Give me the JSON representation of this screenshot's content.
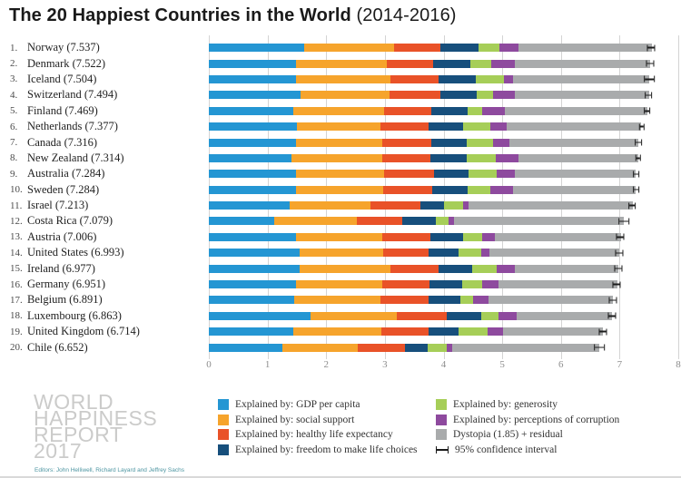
{
  "title": {
    "main": "The 20 Happiest Countries in the World",
    "period": "(2014-2016)"
  },
  "watermark": {
    "lines": [
      "WORLD",
      "HAPPINESS",
      "REPORT",
      "2017"
    ]
  },
  "source": "Editors: John Helliwell, Richard Layard and Jeffrey Sachs",
  "colors": {
    "gdp": "#2496d3",
    "social": "#f6a42c",
    "health": "#e95228",
    "freedom": "#174f7c",
    "generosity": "#a6ce58",
    "corruption": "#8e4a9e",
    "dystopia": "#a9abac",
    "gridline": "#d4d4d4",
    "errorbar": "#1b1b1b"
  },
  "chart_data": {
    "type": "bar",
    "orientation": "horizontal",
    "stacked": true,
    "xmax": 8,
    "ticks": [
      0,
      1,
      2,
      3,
      4,
      5,
      6,
      7,
      8
    ],
    "segments_order": [
      "gdp",
      "social",
      "health",
      "freedom",
      "generosity",
      "corruption",
      "dystopia"
    ],
    "countries": [
      {
        "rank": 1,
        "name": "Norway",
        "score": "7.537",
        "values": [
          1.62,
          1.53,
          0.8,
          0.64,
          0.36,
          0.32,
          2.28
        ],
        "ci": 0.07
      },
      {
        "rank": 2,
        "name": "Denmark",
        "score": "7.522",
        "values": [
          1.48,
          1.55,
          0.79,
          0.63,
          0.36,
          0.4,
          2.31
        ],
        "ci": 0.07
      },
      {
        "rank": 3,
        "name": "Iceland",
        "score": "7.504",
        "values": [
          1.48,
          1.61,
          0.83,
          0.63,
          0.48,
          0.15,
          2.32
        ],
        "ci": 0.09
      },
      {
        "rank": 4,
        "name": "Switzerland",
        "score": "7.494",
        "values": [
          1.56,
          1.52,
          0.86,
          0.62,
          0.29,
          0.37,
          2.28
        ],
        "ci": 0.06
      },
      {
        "rank": 5,
        "name": "Finland",
        "score": "7.469",
        "values": [
          1.44,
          1.54,
          0.81,
          0.62,
          0.25,
          0.38,
          2.43
        ],
        "ci": 0.06
      },
      {
        "rank": 6,
        "name": "Netherlands",
        "score": "7.377",
        "values": [
          1.5,
          1.43,
          0.81,
          0.59,
          0.47,
          0.28,
          2.29
        ],
        "ci": 0.05
      },
      {
        "rank": 7,
        "name": "Canada",
        "score": "7.316",
        "values": [
          1.48,
          1.48,
          0.83,
          0.61,
          0.44,
          0.29,
          2.19
        ],
        "ci": 0.06
      },
      {
        "rank": 8,
        "name": "New Zealand",
        "score": "7.314",
        "values": [
          1.41,
          1.55,
          0.82,
          0.61,
          0.5,
          0.38,
          2.05
        ],
        "ci": 0.05
      },
      {
        "rank": 9,
        "name": "Australia",
        "score": "7.284",
        "values": [
          1.48,
          1.51,
          0.84,
          0.6,
          0.48,
          0.3,
          2.07
        ],
        "ci": 0.06
      },
      {
        "rank": 10,
        "name": "Sweden",
        "score": "7.284",
        "values": [
          1.49,
          1.48,
          0.83,
          0.61,
          0.39,
          0.38,
          2.1
        ],
        "ci": 0.06
      },
      {
        "rank": 11,
        "name": "Israel",
        "score": "7.213",
        "values": [
          1.38,
          1.38,
          0.84,
          0.41,
          0.33,
          0.09,
          2.8
        ],
        "ci": 0.06
      },
      {
        "rank": 12,
        "name": "Costa Rica",
        "score": "7.079",
        "values": [
          1.11,
          1.42,
          0.76,
          0.58,
          0.21,
          0.1,
          2.9
        ],
        "ci": 0.09
      },
      {
        "rank": 13,
        "name": "Austria",
        "score": "7.006",
        "values": [
          1.49,
          1.46,
          0.82,
          0.57,
          0.32,
          0.22,
          2.14
        ],
        "ci": 0.07
      },
      {
        "rank": 14,
        "name": "United States",
        "score": "6.993",
        "values": [
          1.55,
          1.42,
          0.77,
          0.51,
          0.39,
          0.14,
          2.22
        ],
        "ci": 0.07
      },
      {
        "rank": 15,
        "name": "Ireland",
        "score": "6.977",
        "values": [
          1.54,
          1.56,
          0.81,
          0.57,
          0.43,
          0.3,
          1.77
        ],
        "ci": 0.07
      },
      {
        "rank": 16,
        "name": "Germany",
        "score": "6.951",
        "values": [
          1.49,
          1.47,
          0.8,
          0.56,
          0.34,
          0.28,
          2.02
        ],
        "ci": 0.07
      },
      {
        "rank": 17,
        "name": "Belgium",
        "score": "6.891",
        "values": [
          1.46,
          1.46,
          0.82,
          0.54,
          0.23,
          0.25,
          2.12
        ],
        "ci": 0.07
      },
      {
        "rank": 18,
        "name": "Luxembourg",
        "score": "6.863",
        "values": [
          1.74,
          1.46,
          0.85,
          0.6,
          0.28,
          0.32,
          1.62
        ],
        "ci": 0.07
      },
      {
        "rank": 19,
        "name": "United Kingdom",
        "score": "6.714",
        "values": [
          1.44,
          1.5,
          0.81,
          0.51,
          0.49,
          0.27,
          1.7
        ],
        "ci": 0.07
      },
      {
        "rank": 20,
        "name": "Chile",
        "score": "6.652",
        "values": [
          1.25,
          1.28,
          0.82,
          0.38,
          0.33,
          0.08,
          2.51
        ],
        "ci": 0.09
      }
    ],
    "legend": [
      {
        "key": "gdp",
        "label": "Explained by: GDP per capita"
      },
      {
        "key": "social",
        "label": "Explained by: social support"
      },
      {
        "key": "health",
        "label": "Explained by: healthy life expectancy"
      },
      {
        "key": "freedom",
        "label": "Explained by: freedom to make life choices"
      },
      {
        "key": "generosity",
        "label": "Explained by: generosity"
      },
      {
        "key": "corruption",
        "label": "Explained by: perceptions of corruption"
      },
      {
        "key": "dystopia",
        "label": "Dystopia (1.85) + residual"
      },
      {
        "key": "ci",
        "label": "95% confidence interval"
      }
    ]
  }
}
